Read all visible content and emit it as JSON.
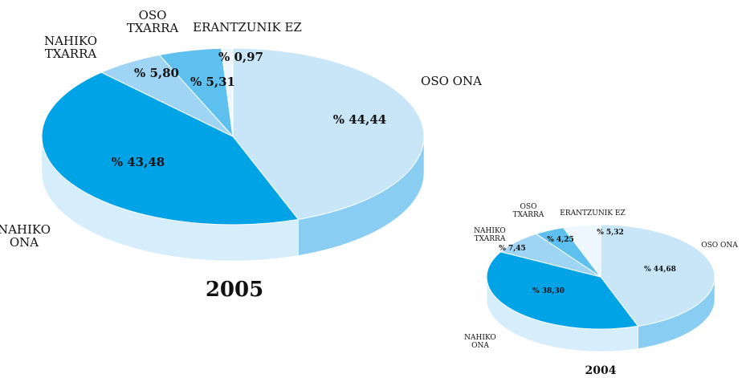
{
  "chart_data": [
    {
      "type": "pie",
      "title": "2005",
      "categories": [
        "OSO ONA",
        "NAHIKO\nONA",
        "NAHIKO\nTXARRA",
        "OSO\nTXARRA",
        "ERANTZUNIK EZ"
      ],
      "values": [
        44.44,
        43.48,
        5.8,
        5.31,
        0.97
      ],
      "value_labels": [
        "% 44,44",
        "% 43,48",
        "% 5,80",
        "% 5,31",
        "% 0,97"
      ],
      "colors": [
        "#c8e6f8",
        "#00a3e6",
        "#9fd4f4",
        "#5ec0ee",
        "#eef7fd"
      ],
      "side_colors": [
        "#8acdf3",
        "#d6edfb",
        "#d6edfb",
        "#d6edfb",
        "#d6edfb"
      ]
    },
    {
      "type": "pie",
      "title": "2004",
      "categories": [
        "OSO ONA",
        "NAHIKO\nONA",
        "NAHIKO\nTXARRA",
        "OSO\nTXARRA",
        "ERANTZUNIK EZ"
      ],
      "values": [
        44.68,
        38.3,
        7.45,
        4.25,
        5.32
      ],
      "value_labels": [
        "% 44,68",
        "% 38,30",
        "% 7,45",
        "% 4,25",
        "% 5,32"
      ],
      "colors": [
        "#c8e6f8",
        "#00a3e6",
        "#9fd4f4",
        "#5ec0ee",
        "#eef7fd"
      ],
      "side_colors": [
        "#8acdf3",
        "#d6edfb",
        "#d6edfb",
        "#d6edfb",
        "#d6edfb"
      ]
    }
  ]
}
